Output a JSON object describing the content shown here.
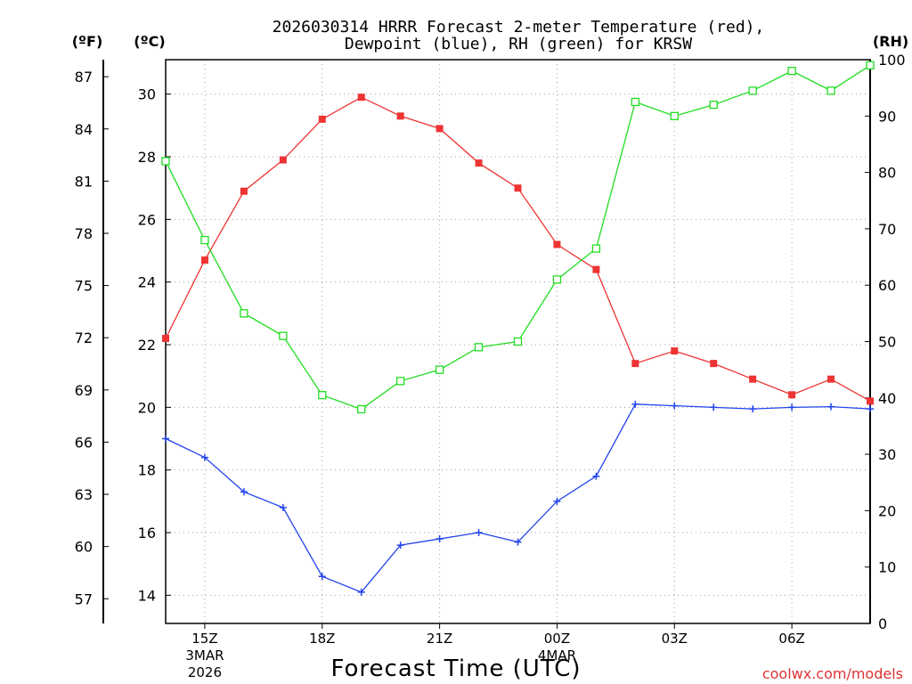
{
  "chart_data": {
    "type": "line",
    "title_line1": "2026030314 HRRR Forecast 2-meter Temperature (red),",
    "title_line2": "Dewpoint (blue), RH (green) for KRSW",
    "xlabel": "Forecast Time (UTC)",
    "credit": "coolwx.com/models",
    "unit_f": "(ºF)",
    "unit_c": "(ºC)",
    "unit_rh": "(RH)",
    "x_hours": [
      14,
      15,
      16,
      17,
      18,
      19,
      20,
      21,
      22,
      23,
      0,
      1,
      2,
      3,
      4,
      5,
      6,
      7,
      8
    ],
    "x_ticks": [
      {
        "index": 1,
        "label": "15Z",
        "sub1": "3MAR",
        "sub2": "2026"
      },
      {
        "index": 4,
        "label": "18Z",
        "sub1": "",
        "sub2": ""
      },
      {
        "index": 7,
        "label": "21Z",
        "sub1": "",
        "sub2": ""
      },
      {
        "index": 10,
        "label": "00Z",
        "sub1": "4MAR",
        "sub2": ""
      },
      {
        "index": 13,
        "label": "03Z",
        "sub1": "",
        "sub2": ""
      },
      {
        "index": 16,
        "label": "06Z",
        "sub1": "",
        "sub2": ""
      }
    ],
    "ylim_c": [
      13.1,
      31.1
    ],
    "y_ticks_c": [
      "14",
      "16",
      "18",
      "20",
      "22",
      "24",
      "26",
      "28",
      "30"
    ],
    "y_ticks_f": [
      "57",
      "60",
      "63",
      "66",
      "69",
      "72",
      "75",
      "78",
      "81",
      "84",
      "87"
    ],
    "ylim_rh": [
      0,
      100
    ],
    "y_ticks_rh": [
      "0",
      "10",
      "20",
      "30",
      "40",
      "50",
      "60",
      "70",
      "80",
      "90",
      "100"
    ],
    "series": [
      {
        "name": "Temperature",
        "color": "#ee3333",
        "marker": "filled-square",
        "values": [
          22.2,
          24.7,
          26.9,
          27.9,
          29.2,
          29.9,
          29.3,
          28.9,
          27.8,
          27.0,
          25.2,
          24.4,
          21.4,
          21.8,
          21.4,
          20.9,
          20.4,
          20.9,
          20.2
        ]
      },
      {
        "name": "Dewpoint",
        "color": "#2244ee",
        "marker": "plus",
        "values": [
          19.0,
          18.4,
          17.3,
          16.8,
          14.6,
          14.1,
          15.6,
          15.8,
          16.0,
          15.7,
          17.0,
          17.8,
          20.1,
          20.05,
          20.0,
          19.95,
          20.0,
          20.02,
          19.95
        ]
      },
      {
        "name": "RH",
        "color": "#22dd22",
        "marker": "open-square",
        "values": [
          82,
          68,
          55,
          51,
          40.5,
          38,
          43,
          45,
          49,
          50,
          61,
          66.5,
          92.5,
          90,
          92,
          94.5,
          98,
          94.5,
          99
        ]
      }
    ]
  }
}
